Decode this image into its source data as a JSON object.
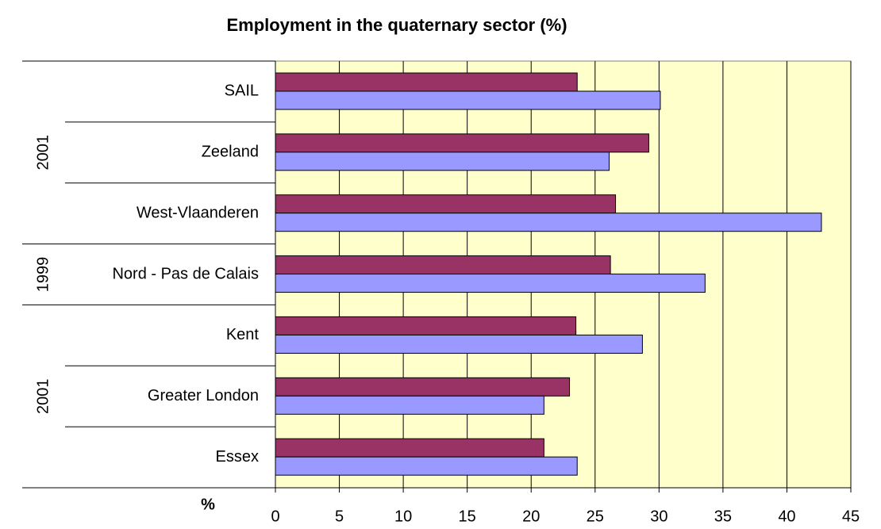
{
  "chart_data": {
    "type": "bar",
    "orientation": "horizontal",
    "title": "Employment in the quaternary sector (%)",
    "xlabel": "%",
    "categories": [
      "SAIL",
      "Zeeland",
      "West-Vlaanderen",
      "Nord - Pas de Calais",
      "Kent",
      "Greater London",
      "Essex"
    ],
    "groups": [
      "2001",
      "2001",
      "2001",
      "1999",
      "2001",
      "2001",
      "2001"
    ],
    "series": [
      {
        "color": "#993366",
        "values": [
          23.6,
          29.2,
          26.6,
          26.2,
          23.5,
          23.0,
          21.0
        ]
      },
      {
        "color": "#9999ff",
        "values": [
          30.1,
          26.1,
          42.7,
          33.6,
          28.7,
          21.0,
          23.6
        ]
      }
    ],
    "xlim": [
      0,
      45
    ],
    "xticks": [
      0,
      5,
      10,
      15,
      20,
      25,
      30,
      35,
      40,
      45
    ],
    "grid": true,
    "plot_background": "#ffffcc"
  }
}
